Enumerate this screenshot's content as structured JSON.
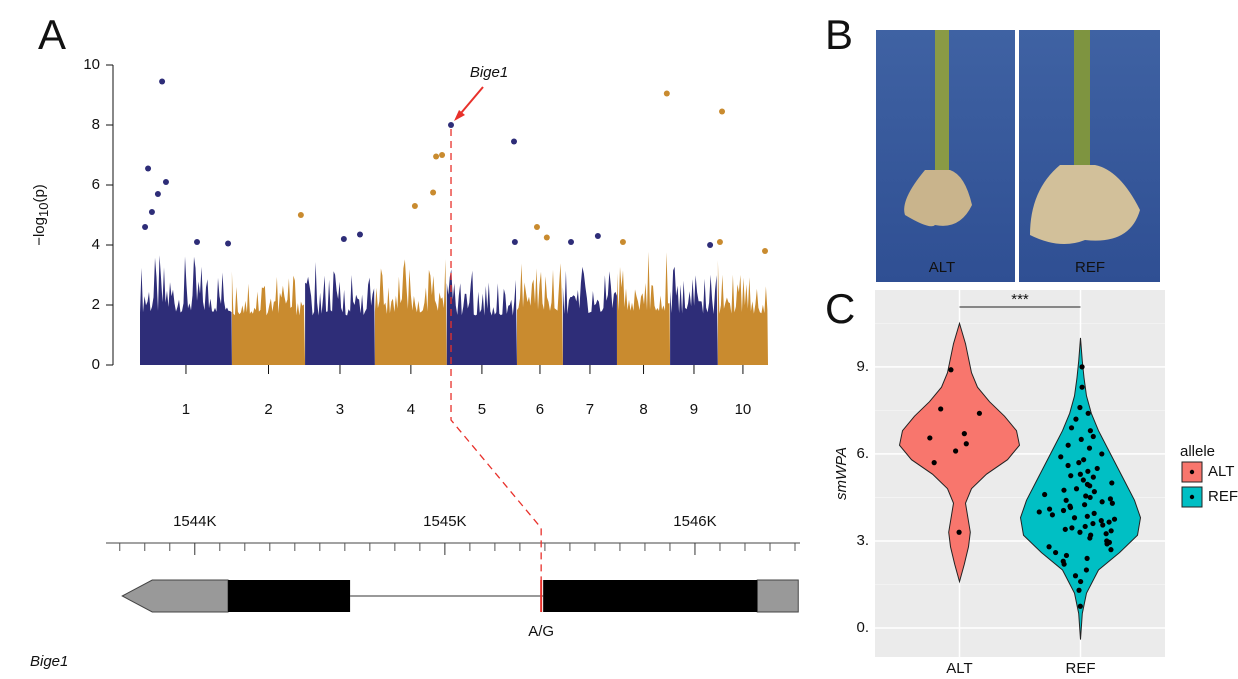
{
  "panel_labels": [
    "A",
    "B",
    "C"
  ],
  "photo": {
    "labels": [
      "ALT",
      "REF"
    ]
  },
  "chart_data": [
    {
      "type": "manhattan",
      "y_label": [
        "−log",
        "10",
        "(p)"
      ],
      "categories": [
        "1",
        "2",
        "3",
        "4",
        "5",
        "6",
        "7",
        "8",
        "9",
        "10"
      ],
      "chrom_lengths": [
        308,
        245,
        234,
        241,
        235,
        154,
        181,
        178,
        160,
        168
      ],
      "colors": [
        "#2e2d78",
        "#c98b2f"
      ],
      "xlim": [
        0,
        2104
      ],
      "ylim": [
        0,
        10
      ],
      "yticks": [
        0,
        2,
        4,
        6,
        8,
        10
      ],
      "band_top": [
        3.5,
        3.3,
        3.3,
        3.4,
        3.3,
        3.6,
        3.4,
        3.6,
        3.4,
        3.4
      ],
      "points": {
        "x": [
          74,
          27,
          60,
          87,
          40,
          17,
          539,
          921,
          982,
          992,
          1012,
          1042,
          1253,
          1765,
          1950,
          191,
          295,
          683,
          737,
          1256,
          1330,
          1363,
          1444,
          1534,
          1618,
          1910,
          1943,
          2094
        ],
        "y": [
          9.45,
          6.55,
          5.7,
          6.1,
          5.1,
          4.6,
          5.0,
          5.3,
          5.75,
          6.95,
          7.0,
          8.0,
          7.45,
          9.05,
          8.45,
          4.1,
          4.05,
          4.2,
          4.35,
          4.1,
          4.6,
          4.25,
          4.1,
          4.3,
          4.1,
          4.0,
          4.1,
          3.8
        ]
      },
      "annotation": {
        "text": "Bige1",
        "x": 1042,
        "y": 8,
        "color": "#e8312b"
      }
    },
    {
      "type": "gene",
      "xlim": [
        1543645,
        1546420
      ],
      "xticks": [
        {
          "value": 1544000,
          "label": "1544K"
        },
        {
          "value": 1545000,
          "label": "1545K"
        },
        {
          "value": 1546000,
          "label": "1546K"
        }
      ],
      "minor_ticks": [
        1543700,
        1543800,
        1543900,
        1544100,
        1544200,
        1544300,
        1544400,
        1544500,
        1544600,
        1544700,
        1544800,
        1544900,
        1545100,
        1545200,
        1545300,
        1545400,
        1545500,
        1545600,
        1545700,
        1545800,
        1545900,
        1546100,
        1546200,
        1546300,
        1546400
      ],
      "gene": {
        "name": "Bige1",
        "utr": [
          [
            1543710,
            1544133
          ],
          [
            1546249,
            1546413
          ]
        ],
        "cds": [
          [
            1544133,
            1544621
          ],
          [
            1545393,
            1546249
          ]
        ],
        "snp_pos": 1545385,
        "snp_label": "A/G"
      }
    },
    {
      "type": "violin",
      "y_label": "smWPA",
      "categories": [
        "ALT",
        "REF"
      ],
      "ylim": [
        -1,
        11.65
      ],
      "yticks": [
        {
          "value": 0,
          "label": "0."
        },
        {
          "value": 3,
          "label": "3."
        },
        {
          "value": 6,
          "label": "6."
        },
        {
          "value": 9,
          "label": "9."
        }
      ],
      "minor_grid": [
        1.5,
        4.5,
        7.5,
        10.5
      ],
      "significance": "***",
      "legend_title": "allele",
      "series": [
        {
          "name": "ALT",
          "color": "#f8766d",
          "values": [
            8.9,
            7.55,
            7.4,
            6.7,
            6.55,
            6.35,
            6.1,
            5.7,
            3.3
          ],
          "violin_y": [
            1.6,
            2.2,
            2.8,
            3.3,
            3.8,
            4.3,
            4.8,
            5.3,
            5.8,
            6.3,
            6.8,
            7.3,
            7.8,
            8.3,
            8.8,
            9.3,
            9.8,
            10.5
          ],
          "violin_density": [
            0,
            0.08,
            0.15,
            0.18,
            0.14,
            0.1,
            0.2,
            0.45,
            0.8,
            1.0,
            0.95,
            0.75,
            0.5,
            0.3,
            0.2,
            0.15,
            0.1,
            0
          ]
        },
        {
          "name": "REF",
          "color": "#00bfc4",
          "values": [
            9.0,
            8.3,
            7.6,
            7.4,
            7.2,
            6.9,
            6.8,
            6.6,
            6.5,
            6.3,
            6.2,
            6.0,
            5.9,
            5.8,
            5.7,
            5.6,
            5.5,
            5.4,
            5.3,
            5.25,
            5.2,
            5.1,
            5.0,
            4.95,
            4.9,
            4.8,
            4.75,
            4.7,
            4.6,
            4.55,
            4.5,
            4.45,
            4.4,
            4.35,
            4.3,
            4.25,
            4.2,
            4.15,
            4.1,
            4.05,
            4.0,
            3.95,
            3.9,
            3.85,
            3.8,
            3.75,
            3.7,
            3.65,
            3.6,
            3.55,
            3.5,
            3.45,
            3.4,
            3.35,
            3.3,
            3.25,
            3.2,
            3.1,
            3.0,
            2.95,
            2.9,
            2.8,
            2.7,
            2.6,
            2.5,
            2.4,
            2.3,
            2.2,
            2.0,
            1.8,
            1.6,
            1.3,
            0.75
          ],
          "violin_y": [
            -0.4,
            0.5,
            1.2,
            2,
            2.6,
            3.2,
            3.8,
            4.4,
            5,
            5.6,
            6.2,
            6.8,
            7.4,
            8,
            8.6,
            9.2,
            10
          ],
          "violin_density": [
            0,
            0.03,
            0.1,
            0.3,
            0.65,
            0.95,
            1.0,
            0.9,
            0.75,
            0.6,
            0.45,
            0.3,
            0.18,
            0.1,
            0.06,
            0.03,
            0
          ]
        }
      ]
    }
  ]
}
